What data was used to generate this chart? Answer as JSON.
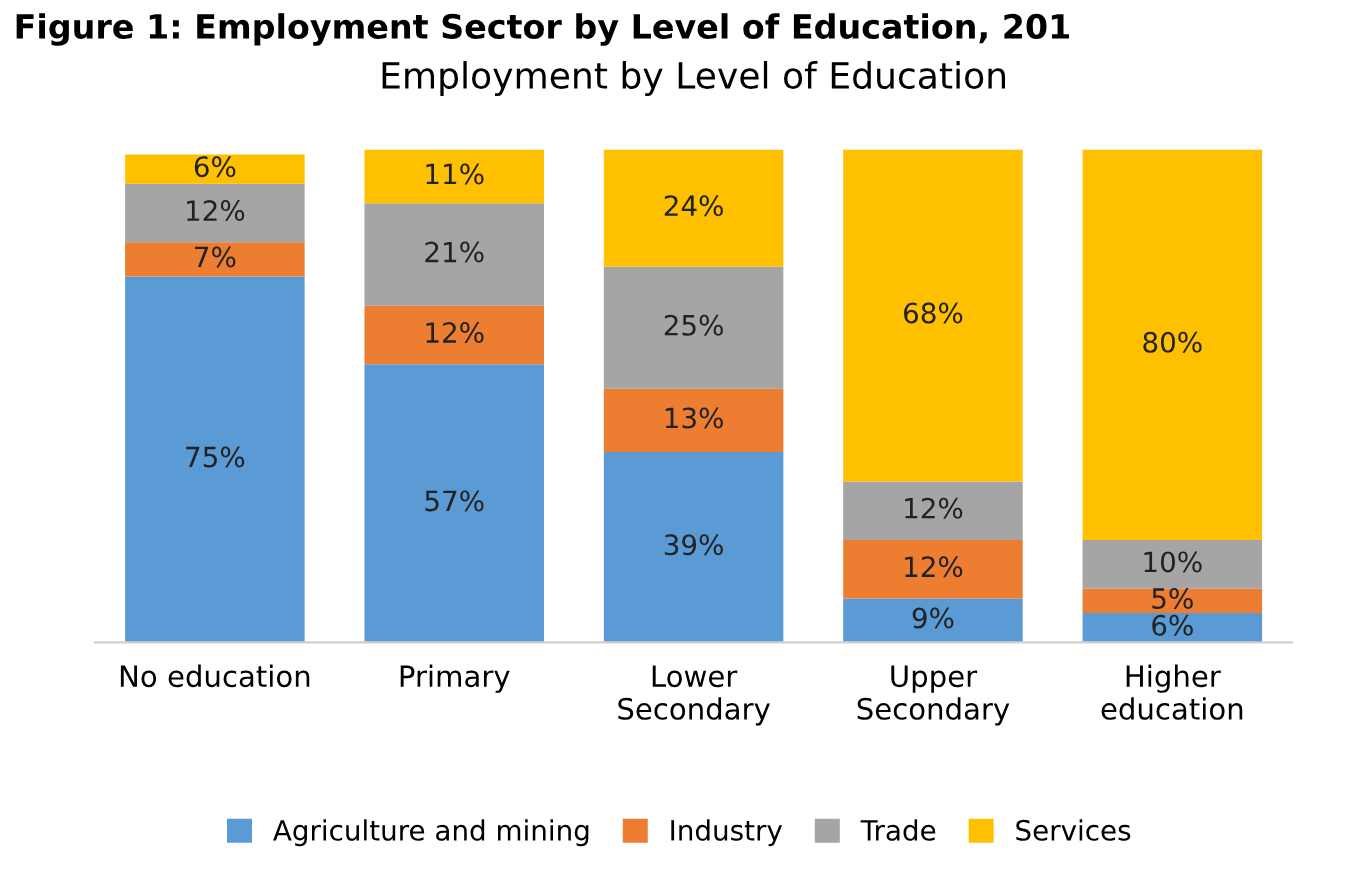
{
  "chart_data": {
    "type": "bar",
    "stacked": true,
    "grid": false,
    "legend": "bottom",
    "title": "Employment by Level of Education",
    "annotations": [
      "Figure 1: Employment Sector by Level of Education, 201"
    ],
    "categories": [
      "No education",
      "Primary",
      "Lower\nSecondary",
      "Upper\nSecondary",
      "Higher\neducation"
    ],
    "series": [
      {
        "name": "Agriculture and mining",
        "color": "#5b9bd5",
        "values": [
          75,
          57,
          39,
          9,
          6
        ],
        "value_labels": [
          "75%",
          "57%",
          "39%",
          "9%",
          "6%"
        ]
      },
      {
        "name": "Industry",
        "color": "#ed7d31",
        "values": [
          7,
          12,
          13,
          12,
          5
        ],
        "value_labels": [
          "7%",
          "12%",
          "13%",
          "12%",
          "5%"
        ]
      },
      {
        "name": "Trade",
        "color": "#a5a5a5",
        "values": [
          12,
          21,
          25,
          12,
          10
        ],
        "value_labels": [
          "12%",
          "21%",
          "25%",
          "12%",
          "10%"
        ]
      },
      {
        "name": "Services",
        "color": "#ffc000",
        "values": [
          6,
          11,
          24,
          68,
          80
        ],
        "value_labels": [
          "6%",
          "11%",
          "24%",
          "68%",
          "80%"
        ]
      }
    ]
  }
}
